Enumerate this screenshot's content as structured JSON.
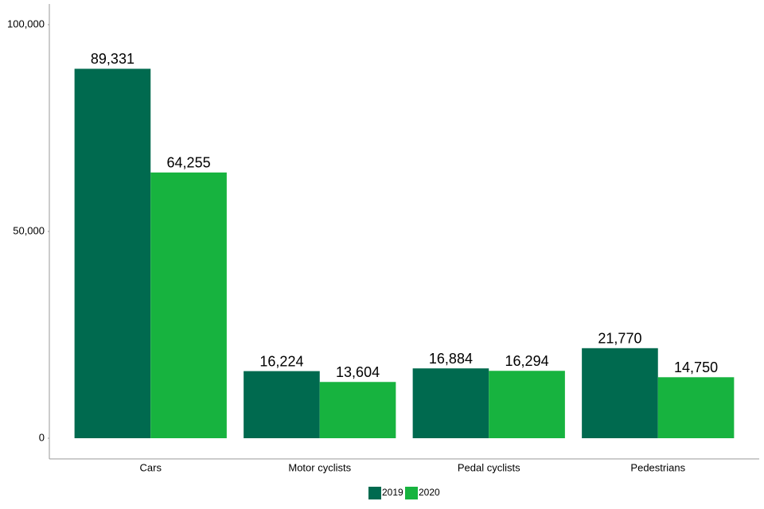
{
  "chart_data": {
    "type": "bar",
    "categories": [
      "Cars",
      "Motor cyclists",
      "Pedal cyclists",
      "Pedestrians"
    ],
    "series": [
      {
        "name": "2019",
        "color": "#006a4f",
        "values": [
          89331,
          16224,
          16884,
          21770
        ],
        "value_labels": [
          "89,331",
          "16,224",
          "16,884",
          "21,770"
        ]
      },
      {
        "name": "2020",
        "color": "#17b33f",
        "values": [
          64255,
          13604,
          16294,
          14750
        ],
        "value_labels": [
          "64,255",
          "13,604",
          "16,294",
          "14,750"
        ]
      }
    ],
    "ylim": [
      -5000,
      105000
    ],
    "yticks": [
      0,
      {
        "value": 50000,
        "label": "50,000"
      },
      {
        "value": 100000,
        "label": "100,000"
      }
    ],
    "legend": "bottom"
  }
}
